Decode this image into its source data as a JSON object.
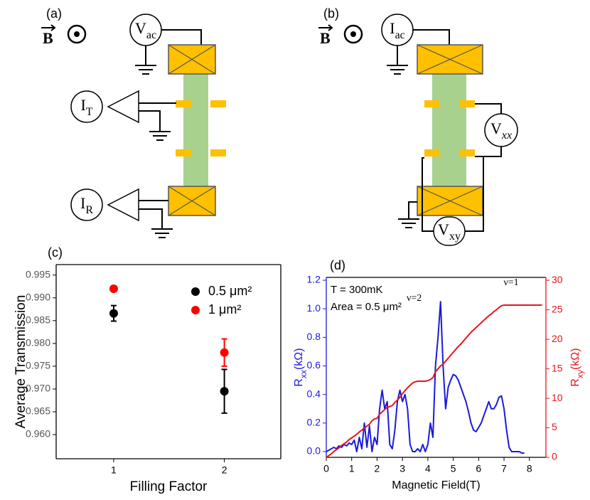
{
  "panel_a": {
    "label": "(a)",
    "field": "B",
    "source": {
      "main": "V",
      "sub": "ac"
    },
    "meter_top": {
      "main": "I",
      "sub": "T"
    },
    "meter_bottom": {
      "main": "I",
      "sub": "R"
    }
  },
  "panel_b": {
    "label": "(b)",
    "field": "B",
    "source": {
      "main": "I",
      "sub": "ac"
    },
    "meter_xx": {
      "main": "V",
      "sub": "xx"
    },
    "meter_xy": {
      "main": "V",
      "sub": "xy"
    }
  },
  "chart_data": [
    {
      "type": "scatter",
      "label": "(c)",
      "xlabel": "Filling Factor",
      "ylabel": "Average Transmission",
      "x": [
        1,
        2
      ],
      "xlim": [
        0.48,
        2.51
      ],
      "xticks": [
        1,
        2
      ],
      "ylim": [
        0.9547,
        0.9973
      ],
      "yticks": [
        {
          "value": 0.96,
          "label": "0.960"
        },
        0.965,
        {
          "value": 0.97,
          "label": "0.970"
        },
        0.975,
        {
          "value": 0.98,
          "label": "0.980"
        },
        0.985,
        {
          "value": 0.99,
          "label": "0.990"
        },
        0.995
      ],
      "legend": "upper right",
      "series": [
        {
          "name": "0.5 μm²",
          "color": "#000000",
          "values": [
            0.9866,
            0.9695
          ],
          "errors": [
            0.0017,
            0.0048
          ]
        },
        {
          "name": "1 μm²",
          "color": "#ff0000",
          "values": [
            0.992,
            0.978
          ],
          "errors": [
            0.0006,
            0.003
          ]
        }
      ]
    },
    {
      "type": "line",
      "label": "(d)",
      "xlabel": "Magnetic Field(T)",
      "ylabel": [
        "R",
        "xx",
        "(kΩ)"
      ],
      "y2label": [
        "R",
        "xy",
        "(kΩ)"
      ],
      "annotations": [
        "T = 300mK",
        "Area = 0.5 μm²",
        "ν=2",
        "ν=1"
      ],
      "xlim": [
        0,
        8.65
      ],
      "xticks": [
        0,
        1,
        2,
        3,
        4,
        5,
        6,
        7,
        8
      ],
      "ylim": [
        -0.04,
        1.22
      ],
      "yticks": [
        {
          "value": 0,
          "label": "0.0"
        },
        0.2,
        0.4,
        0.6,
        0.8,
        {
          "value": 1,
          "label": "1.0"
        },
        1.2
      ],
      "y2lim": [
        0,
        30.5
      ],
      "y2ticks": [
        0,
        5,
        10,
        15,
        20,
        25,
        30
      ],
      "x": [
        0,
        0.1,
        0.2,
        0.3,
        0.4,
        0.5,
        0.6,
        0.7,
        0.8,
        0.9,
        1,
        1.1,
        1.2,
        1.3,
        1.4,
        1.5,
        1.6,
        1.7,
        1.8,
        1.9,
        2,
        2.1,
        2.2,
        2.3,
        2.4,
        2.5,
        2.6,
        2.7,
        2.8,
        2.9,
        3,
        3.1,
        3.2,
        3.3,
        3.4,
        3.5,
        3.6,
        3.7,
        3.8,
        3.9,
        4,
        4.1,
        4.2,
        4.3,
        4.4,
        4.5,
        4.6,
        4.7,
        4.8,
        4.9,
        5,
        5.1,
        5.2,
        5.3,
        5.4,
        5.5,
        5.6,
        5.7,
        5.8,
        5.9,
        6,
        6.1,
        6.2,
        6.3,
        6.4,
        6.5,
        6.6,
        6.7,
        6.8,
        6.9,
        7,
        7.1,
        7.2,
        7.3,
        7.4,
        7.5,
        7.6,
        7.7,
        7.8,
        7.9,
        8,
        8.1,
        8.2,
        8.3,
        8.4,
        8.5
      ],
      "series": [
        {
          "color": "#1a1adb",
          "values": [
            0,
            0.01,
            0.02,
            0.03,
            0.02,
            0.04,
            0.03,
            0.05,
            0.04,
            0.06,
            0.05,
            0.08,
            0,
            0.1,
            0.02,
            0.2,
            0.03,
            0.18,
            0,
            0.1,
            0.05,
            0.3,
            0.43,
            0.3,
            0.35,
            0.05,
            0.02,
            0.15,
            0.35,
            0.43,
            0.35,
            0.4,
            0.3,
            0.05,
            0,
            0,
            0.02,
            0,
            0.05,
            0,
            0.05,
            0.2,
            0.1,
            0.6,
            0.8,
            1.05,
            0.6,
            0.3,
            0.45,
            0.5,
            0.54,
            0.53,
            0.5,
            0.45,
            0.4,
            0.35,
            0.28,
            0.2,
            0.15,
            0.14,
            0.17,
            0.2,
            0.25,
            0.3,
            0.35,
            0.3,
            0.3,
            0.33,
            0.38,
            0.39,
            0.3,
            0.15,
            0.03,
            0,
            0,
            0,
            0,
            -0.01,
            -0.01,
            null,
            null,
            null,
            null,
            null,
            null,
            null
          ]
        },
        {
          "color": "#e8141c",
          "axis": "y2",
          "values": [
            0,
            0.3,
            0.6,
            1,
            1.3,
            1.6,
            2,
            2.3,
            2.6,
            3,
            3.3,
            3.6,
            3.9,
            4.3,
            4.6,
            5,
            5.3,
            5.6,
            6.2,
            6.5,
            6.6,
            7.3,
            7.7,
            8.1,
            8.5,
            8.6,
            8.8,
            9.3,
            9.7,
            10.2,
            10.8,
            11.3,
            11.8,
            12.2,
            12.6,
            12.8,
            12.9,
            12.9,
            12.9,
            12.9,
            13,
            13.2,
            13.5,
            14.5,
            15,
            15.5,
            15.8,
            16.3,
            16.8,
            17.3,
            17.8,
            18.3,
            18.8,
            19.2,
            19.7,
            20.2,
            20.7,
            21.2,
            21.6,
            22,
            22.4,
            22.8,
            23.2,
            23.6,
            24,
            24.3,
            24.7,
            25,
            25.4,
            25.7,
            25.8,
            25.8,
            25.8,
            25.8,
            25.8,
            25.8,
            25.8,
            25.8,
            25.8,
            25.8,
            25.8,
            25.8,
            25.8,
            25.8,
            25.8,
            25.8
          ]
        }
      ]
    }
  ]
}
